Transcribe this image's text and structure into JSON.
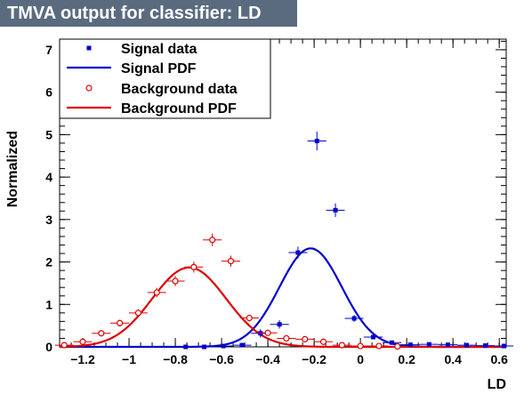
{
  "chart_data": {
    "type": "scatter",
    "title": "TMVA output for classifier: LD",
    "xlabel": "LD",
    "ylabel": "Normalized",
    "xlim": [
      -1.3,
      0.63
    ],
    "ylim": [
      0,
      7.25
    ],
    "xticks": [
      -1.2,
      -1,
      -0.8,
      -0.6,
      -0.4,
      -0.2,
      0,
      0.2,
      0.4,
      0.6
    ],
    "xtick_labels": [
      "−1.2",
      "−1",
      "−0.8",
      "−0.6",
      "−0.4",
      "−0.2",
      "0",
      "0.2",
      "0.4",
      "0.6"
    ],
    "yticks": [
      0,
      1,
      2,
      3,
      4,
      5,
      6,
      7
    ],
    "ytick_labels": [
      "0",
      "1",
      "2",
      "3",
      "4",
      "5",
      "6",
      "7"
    ],
    "legend_position": "top-left",
    "legend": [
      {
        "label": "Signal data",
        "key": "signal_data"
      },
      {
        "label": "Signal PDF",
        "key": "signal_pdf"
      },
      {
        "label": "Background data",
        "key": "background_data"
      },
      {
        "label": "Background PDF",
        "key": "background_pdf"
      }
    ],
    "series": [
      {
        "name": "Signal data",
        "kind": "points",
        "marker": "filled-square",
        "color": "#0000cc",
        "bin_half_width": 0.0405,
        "x": [
          -0.755,
          -0.675,
          -0.592,
          -0.512,
          -0.432,
          -0.35,
          -0.27,
          -0.188,
          -0.108,
          -0.027,
          0.055,
          0.136,
          0.216,
          0.297,
          0.378,
          0.459,
          0.54,
          0.62
        ],
        "y": [
          0.0,
          0.0,
          0.02,
          0.04,
          0.32,
          0.53,
          2.22,
          4.85,
          3.22,
          0.67,
          0.23,
          0.1,
          0.05,
          0.06,
          0.05,
          0.04,
          0.03,
          0.02
        ],
        "y_err": [
          0.0,
          0.0,
          0.03,
          0.05,
          0.1,
          0.1,
          0.14,
          0.22,
          0.16,
          0.08,
          0.05,
          0.04,
          0.03,
          0.03,
          0.03,
          0.03,
          0.02,
          0.02
        ]
      },
      {
        "name": "Signal PDF",
        "kind": "curve",
        "color": "#0000cc",
        "amplitude": 2.32,
        "mean": -0.215,
        "sigma": 0.135
      },
      {
        "name": "Background data",
        "kind": "points",
        "marker": "open-circle",
        "color": "#dd0000",
        "bin_half_width": 0.0405,
        "x": [
          -1.28,
          -1.2,
          -1.12,
          -1.04,
          -0.96,
          -0.88,
          -0.8,
          -0.72,
          -0.64,
          -0.56,
          -0.48,
          -0.4,
          -0.32,
          -0.24,
          -0.16,
          -0.08,
          0.0,
          0.08,
          0.16
        ],
        "y": [
          0.04,
          0.12,
          0.32,
          0.56,
          0.8,
          1.28,
          1.55,
          1.88,
          2.52,
          2.02,
          0.68,
          0.33,
          0.2,
          0.18,
          0.12,
          0.04,
          0.02,
          0.02,
          0.01
        ],
        "y_err": [
          0.02,
          0.04,
          0.06,
          0.08,
          0.09,
          0.11,
          0.12,
          0.13,
          0.15,
          0.13,
          0.08,
          0.06,
          0.05,
          0.04,
          0.04,
          0.02,
          0.02,
          0.02,
          0.01
        ]
      },
      {
        "name": "Background PDF",
        "kind": "curve",
        "color": "#dd0000",
        "amplitude": 1.87,
        "mean": -0.74,
        "sigma": 0.16
      }
    ]
  }
}
